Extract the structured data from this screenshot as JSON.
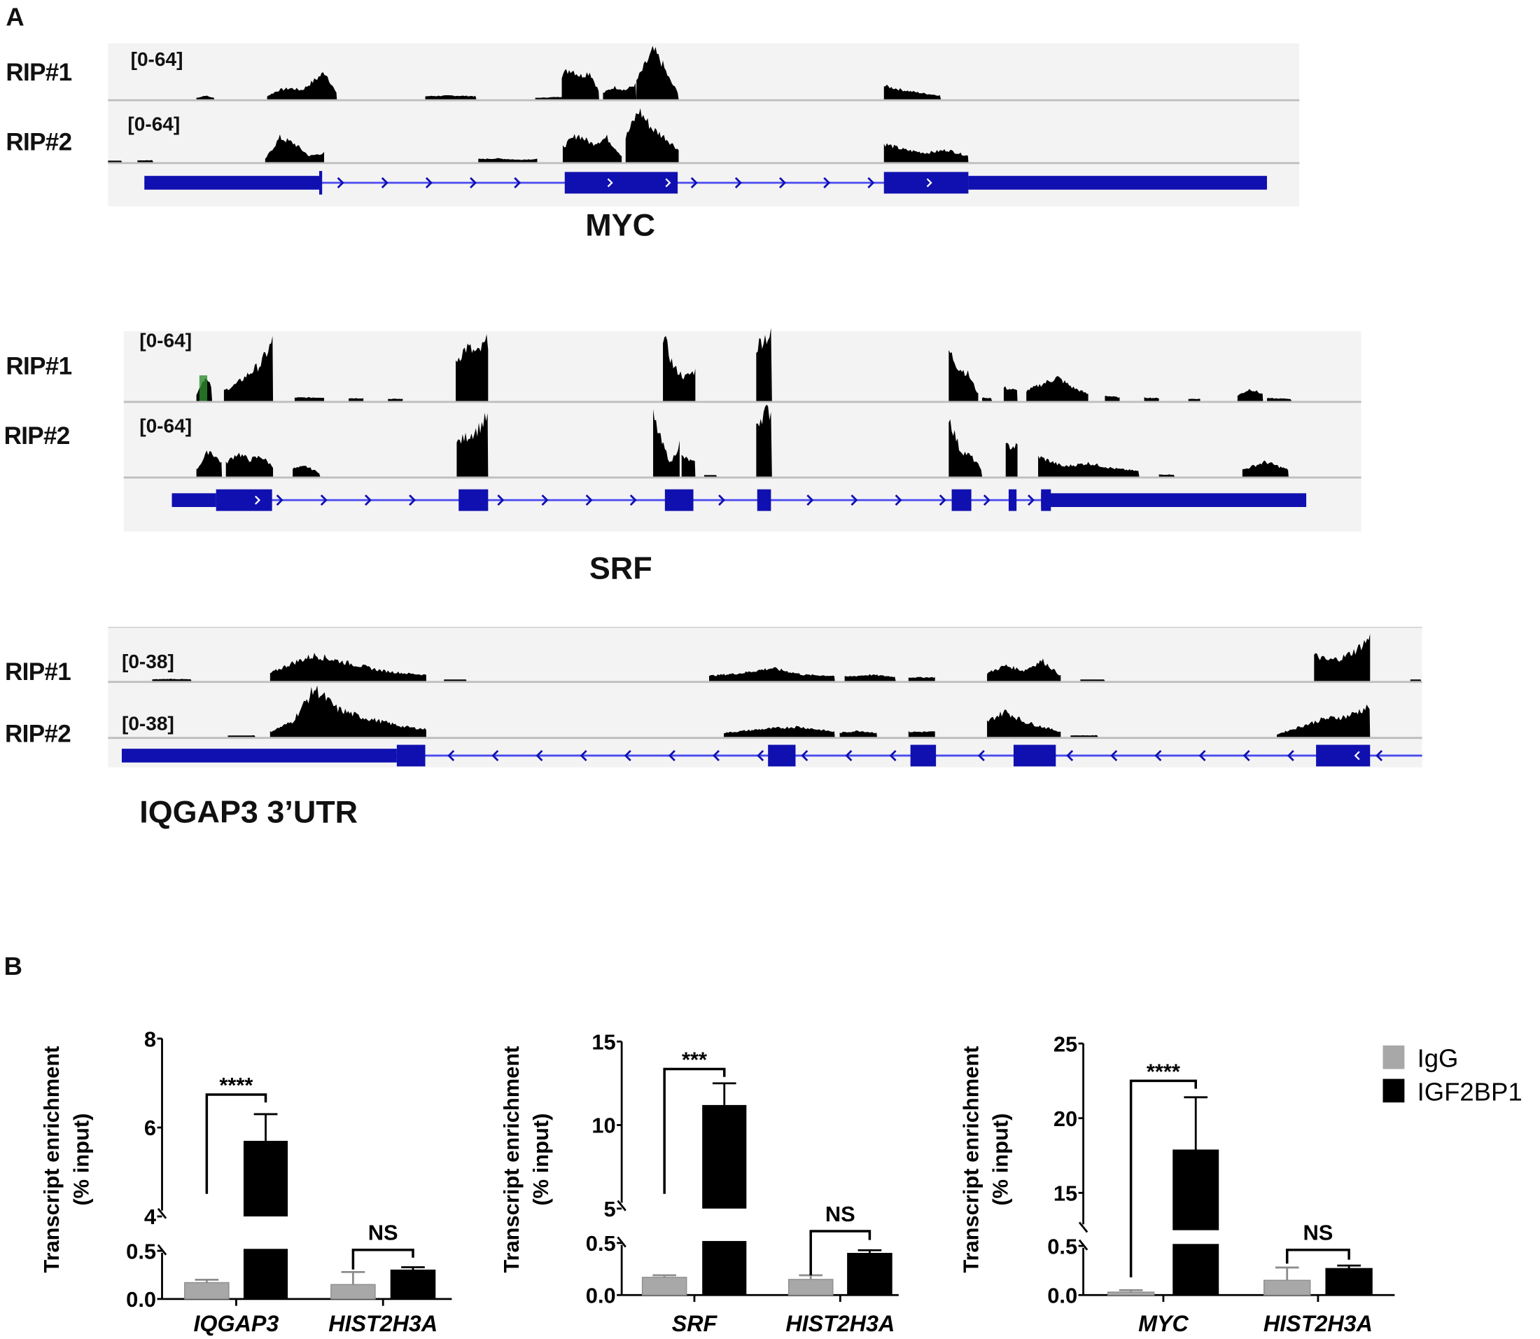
{
  "panel_a": {
    "label": "A",
    "genes": [
      {
        "name": "MYC",
        "tracks": [
          {
            "label": "RIP#1",
            "range": "[0-64]"
          },
          {
            "label": "RIP#2",
            "range": "[0-64]"
          }
        ]
      },
      {
        "name": "SRF",
        "tracks": [
          {
            "label": "RIP#1",
            "range": "[0-64]"
          },
          {
            "label": "RIP#2",
            "range": "[0-64]"
          }
        ]
      },
      {
        "name": "IQGAP3 3’UTR",
        "tracks": [
          {
            "label": "RIP#1",
            "range": "[0-38]"
          },
          {
            "label": "RIP#2",
            "range": "[0-38]"
          }
        ]
      }
    ],
    "colors": {
      "coverage": "#000000",
      "gene_model": "#1010b0",
      "track_bg": "#f3f3f3"
    }
  },
  "panel_b": {
    "label": "B"
  },
  "chart_data": [
    {
      "type": "bar",
      "ylabel": [
        "Transcript enrichment",
        "(% input)"
      ],
      "categories": [
        "IQGAP3",
        "HIST2H3A"
      ],
      "series": [
        {
          "name": "IgG",
          "color": "#a8a8a8",
          "values": [
            0.17,
            0.15
          ],
          "errors": [
            0.03,
            0.13
          ]
        },
        {
          "name": "IGF2BP1",
          "color": "#000000",
          "values": [
            5.7,
            0.3
          ],
          "errors": [
            0.6,
            0.03
          ]
        }
      ],
      "y_segments": [
        {
          "range": [
            0,
            0.5
          ],
          "ticks": [
            "0.0",
            "0.5"
          ]
        },
        {
          "range": [
            4,
            8
          ],
          "ticks": [
            "4",
            "6",
            "8"
          ]
        }
      ],
      "significance": [
        {
          "category": "IQGAP3",
          "label": "****"
        },
        {
          "category": "HIST2H3A",
          "label": "NS"
        }
      ]
    },
    {
      "type": "bar",
      "ylabel": [
        "Transcript enrichment",
        "(% input)"
      ],
      "categories": [
        "SRF",
        "HIST2H3A"
      ],
      "series": [
        {
          "name": "IgG",
          "color": "#a8a8a8",
          "values": [
            0.17,
            0.15
          ],
          "errors": [
            0.02,
            0.04
          ]
        },
        {
          "name": "IGF2BP1",
          "color": "#000000",
          "values": [
            11.2,
            0.4
          ],
          "errors": [
            1.3,
            0.03
          ]
        }
      ],
      "y_segments": [
        {
          "range": [
            0,
            0.5
          ],
          "ticks": [
            "0.0",
            "0.5"
          ]
        },
        {
          "range": [
            5,
            15
          ],
          "ticks": [
            "5",
            "10",
            "15"
          ]
        }
      ],
      "significance": [
        {
          "category": "SRF",
          "label": "***"
        },
        {
          "category": "HIST2H3A",
          "label": "NS"
        }
      ]
    },
    {
      "type": "bar",
      "ylabel": [
        "Transcript enrichment",
        "(% input)"
      ],
      "categories": [
        "MYC",
        "HIST2H3A"
      ],
      "series": [
        {
          "name": "IgG",
          "color": "#a8a8a8",
          "values": [
            0.03,
            0.15
          ],
          "errors": [
            0.02,
            0.13
          ]
        },
        {
          "name": "IGF2BP1",
          "color": "#000000",
          "values": [
            17.9,
            0.27
          ],
          "errors": [
            3.5,
            0.03
          ]
        }
      ],
      "y_segments": [
        {
          "range": [
            0,
            0.5
          ],
          "ticks": [
            "0.0",
            "0.5"
          ]
        },
        {
          "range": [
            12.5,
            25
          ],
          "ticks": [
            "15",
            "20",
            "25"
          ]
        }
      ],
      "significance": [
        {
          "category": "MYC",
          "label": "****"
        },
        {
          "category": "HIST2H3A",
          "label": "NS"
        }
      ],
      "legend": {
        "position": "right",
        "entries": [
          "IgG",
          "IGF2BP1"
        ]
      }
    }
  ]
}
